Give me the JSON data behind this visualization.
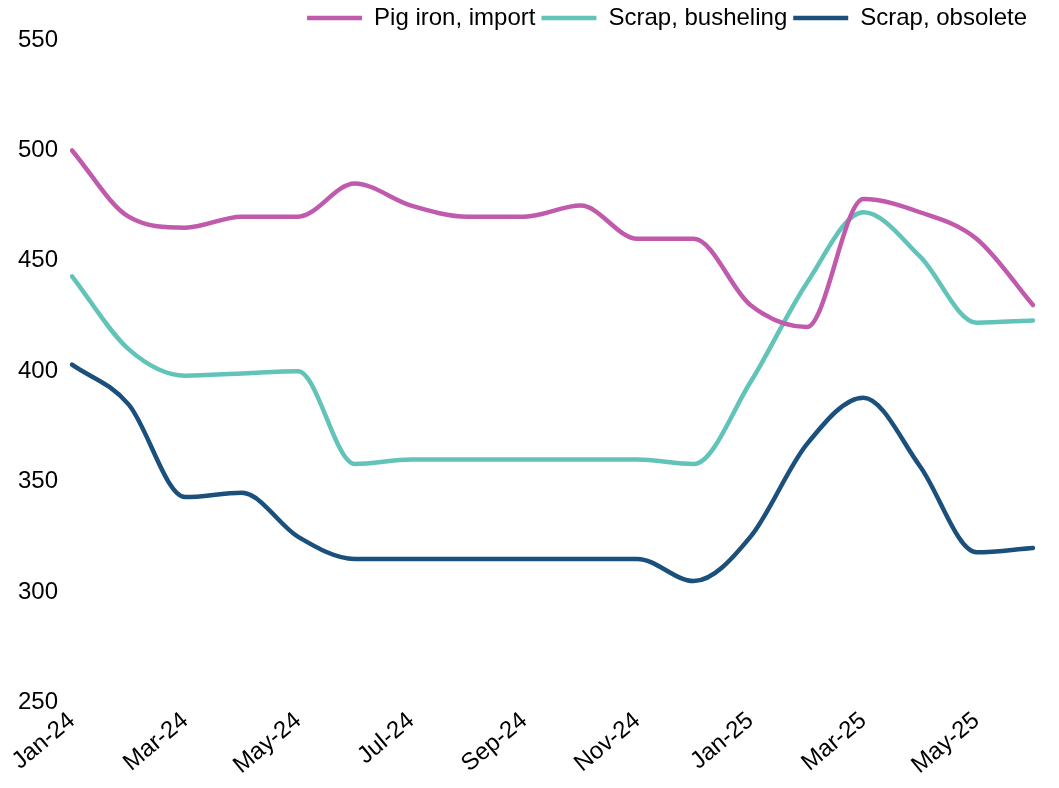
{
  "chart_data": {
    "type": "line",
    "categories": [
      "Jan-24",
      null,
      "Mar-24",
      null,
      "May-24",
      null,
      "Jul-24",
      null,
      "Sep-24",
      null,
      "Nov-24",
      null,
      "Jan-25",
      null,
      "Mar-25",
      null,
      "May-25",
      null
    ],
    "series": [
      {
        "name": "Pig iron, import",
        "color": "#c05aac",
        "values": [
          500,
          470,
          465,
          470,
          470,
          485,
          475,
          470,
          470,
          475,
          460,
          460,
          430,
          420,
          478,
          472,
          460,
          430
        ]
      },
      {
        "name": "Scrap, busheling",
        "color": "#62c3b9",
        "values": [
          443,
          410,
          398,
          399,
          400,
          358,
          360,
          360,
          360,
          360,
          360,
          358,
          395,
          440,
          472,
          452,
          422,
          423
        ]
      },
      {
        "name": "Scrap, obsolete",
        "color": "#1b4f7c",
        "values": [
          403,
          385,
          343,
          345,
          325,
          315,
          315,
          315,
          315,
          315,
          315,
          305,
          325,
          367,
          388,
          357,
          318,
          320
        ]
      }
    ],
    "ylim": [
      250,
      550
    ],
    "yticks": [
      250,
      300,
      350,
      400,
      450,
      500,
      550
    ],
    "grid": false,
    "legend": "top",
    "marker": "none",
    "line_style": "solid"
  }
}
